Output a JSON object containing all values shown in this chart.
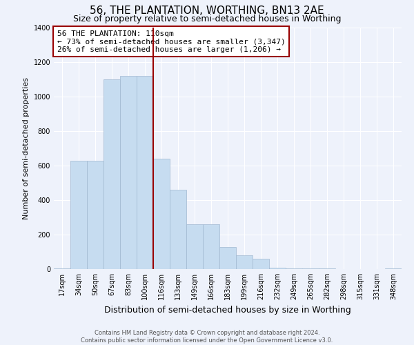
{
  "title": "56, THE PLANTATION, WORTHING, BN13 2AE",
  "subtitle": "Size of property relative to semi-detached houses in Worthing",
  "xlabel": "Distribution of semi-detached houses by size in Worthing",
  "ylabel": "Number of semi-detached properties",
  "footer_line1": "Contains HM Land Registry data © Crown copyright and database right 2024.",
  "footer_line2": "Contains public sector information licensed under the Open Government Licence v3.0.",
  "annotation_line1": "56 THE PLANTATION: 110sqm",
  "annotation_line2": "← 73% of semi-detached houses are smaller (3,347)",
  "annotation_line3": "26% of semi-detached houses are larger (1,206) →",
  "bar_color": "#c6dcf0",
  "bar_edge_color": "#a0b8d0",
  "vline_color": "#990000",
  "annotation_box_edge_color": "#990000",
  "categories": [
    "17sqm",
    "34sqm",
    "50sqm",
    "67sqm",
    "83sqm",
    "100sqm",
    "116sqm",
    "133sqm",
    "149sqm",
    "166sqm",
    "183sqm",
    "199sqm",
    "216sqm",
    "232sqm",
    "249sqm",
    "265sqm",
    "282sqm",
    "298sqm",
    "315sqm",
    "331sqm",
    "348sqm"
  ],
  "values": [
    5,
    630,
    630,
    1100,
    1120,
    1120,
    640,
    460,
    260,
    260,
    130,
    80,
    60,
    10,
    5,
    5,
    3,
    1,
    1,
    1,
    5
  ],
  "ylim": [
    0,
    1400
  ],
  "yticks": [
    0,
    200,
    400,
    600,
    800,
    1000,
    1200,
    1400
  ],
  "vline_x_index": 5.5,
  "background_color": "#eef2fb",
  "grid_color": "#ffffff",
  "title_fontsize": 11,
  "subtitle_fontsize": 9,
  "tick_fontsize": 7,
  "ylabel_fontsize": 8,
  "xlabel_fontsize": 9,
  "annotation_fontsize": 8,
  "footer_fontsize": 6
}
